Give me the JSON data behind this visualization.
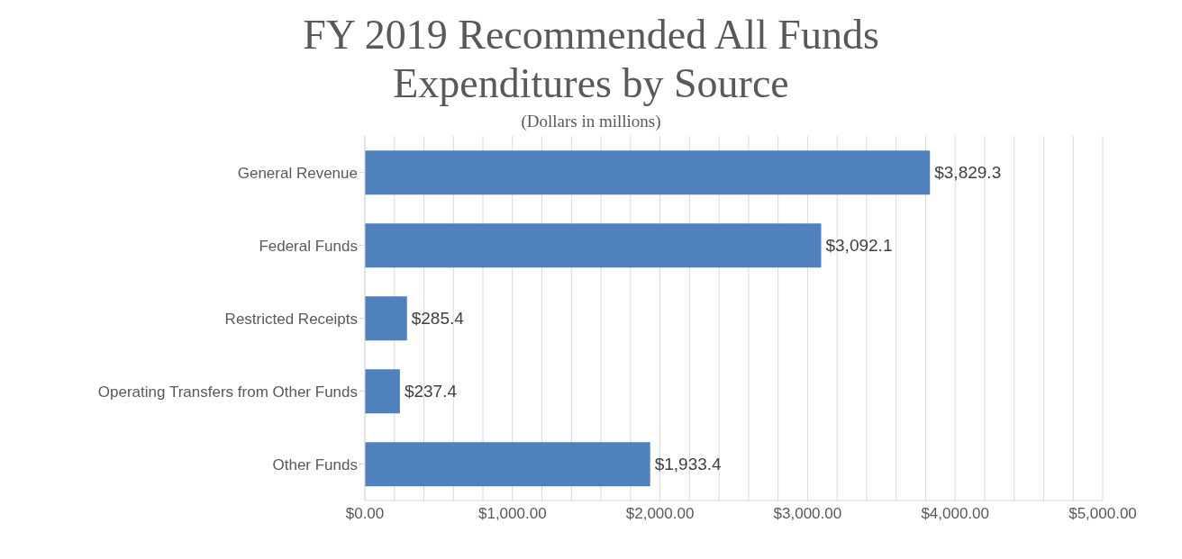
{
  "chart_data": {
    "type": "bar",
    "orientation": "horizontal",
    "title": "FY 2019 Recommended All Funds Expenditures by Source",
    "subtitle": "(Dollars in millions)",
    "categories": [
      "General Revenue",
      "Federal Funds",
      "Restricted Receipts",
      "Operating Transfers from Other Funds",
      "Other Funds"
    ],
    "values": [
      3829.3,
      3092.1,
      285.4,
      237.4,
      1933.4
    ],
    "value_labels": [
      "$3,829.3",
      "$3,092.1",
      "$285.4",
      "$237.4",
      "$1,933.4"
    ],
    "color": "#4f81bd",
    "xlim": [
      0,
      5000
    ],
    "xticks": [
      {
        "value": 0,
        "label": "$0.00"
      },
      {
        "value": 200,
        "label": null
      },
      {
        "value": 400,
        "label": null
      },
      {
        "value": 600,
        "label": null
      },
      {
        "value": 800,
        "label": null
      },
      {
        "value": 1000,
        "label": "$1,000.00"
      },
      {
        "value": 1200,
        "label": null
      },
      {
        "value": 1400,
        "label": null
      },
      {
        "value": 1600,
        "label": null
      },
      {
        "value": 1800,
        "label": null
      },
      {
        "value": 2000,
        "label": "$2,000.00"
      },
      {
        "value": 2200,
        "label": null
      },
      {
        "value": 2400,
        "label": null
      },
      {
        "value": 2600,
        "label": null
      },
      {
        "value": 2800,
        "label": null
      },
      {
        "value": 3000,
        "label": "$3,000.00"
      },
      {
        "value": 3200,
        "label": null
      },
      {
        "value": 3400,
        "label": null
      },
      {
        "value": 3600,
        "label": null
      },
      {
        "value": 3800,
        "label": null
      },
      {
        "value": 4000,
        "label": "$4,000.00"
      },
      {
        "value": 4200,
        "label": null
      },
      {
        "value": 4400,
        "label": null
      },
      {
        "value": 4600,
        "label": null
      },
      {
        "value": 4800,
        "label": null
      },
      {
        "value": 5000,
        "label": "$5,000.00"
      }
    ],
    "grid": "x"
  }
}
